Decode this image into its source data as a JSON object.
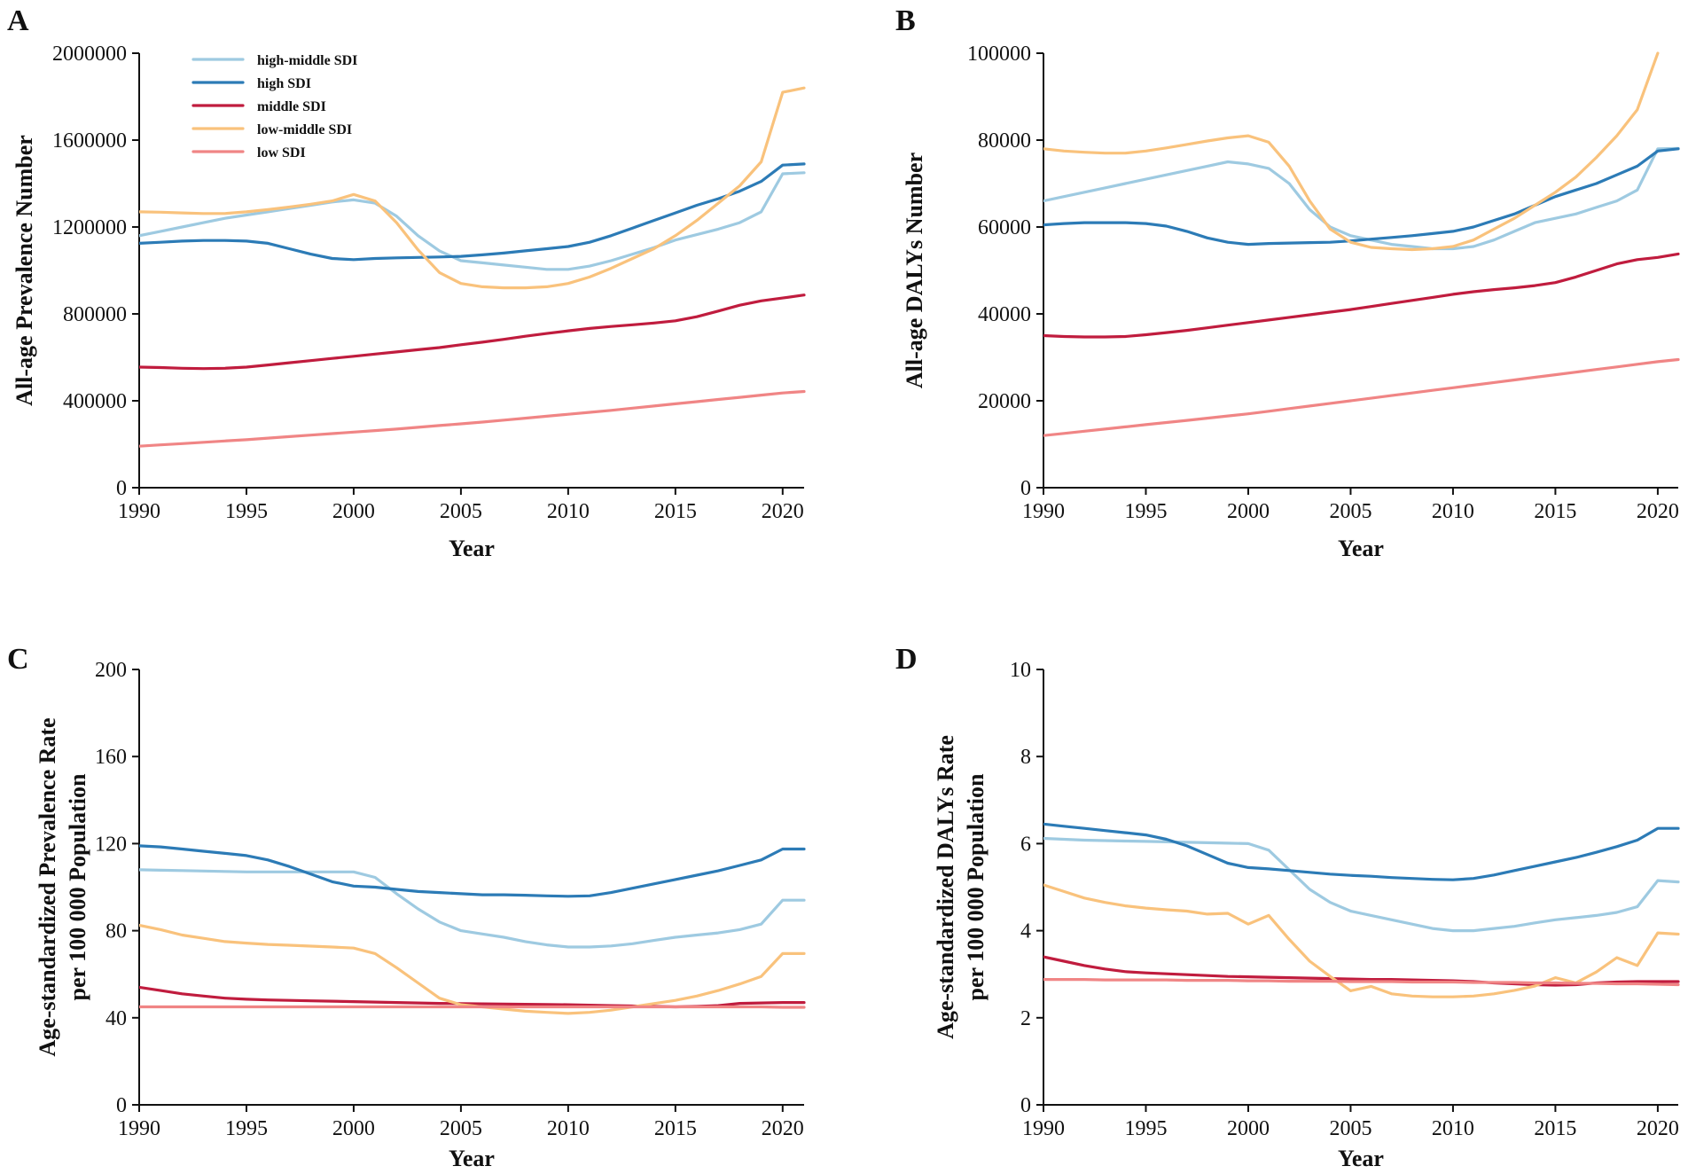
{
  "colors": {
    "high-middle SDI": "#9ecae1",
    "high SDI": "#2c7bb6",
    "middle SDI": "#c01c3e",
    "low-middle SDI": "#f9c27c",
    "low SDI": "#f08585"
  },
  "chart_data": [
    {
      "id": "A",
      "type": "line",
      "panel_label": "A",
      "title": "",
      "xlabel": "Year",
      "ylabel": "All-age Prevalence Number",
      "xlim": [
        1990,
        2021
      ],
      "ylim": [
        0,
        2000000
      ],
      "xticks": [
        1990,
        1995,
        2000,
        2005,
        2010,
        2015,
        2020
      ],
      "yticks": [
        0,
        400000,
        800000,
        1200000,
        1600000,
        2000000
      ],
      "legend": {
        "position": "top-left",
        "entries": [
          "high-middle SDI",
          "high SDI",
          "middle SDI",
          "low-middle SDI",
          "low SDI"
        ]
      },
      "x": [
        1990,
        1991,
        1992,
        1993,
        1994,
        1995,
        1996,
        1997,
        1998,
        1999,
        2000,
        2001,
        2002,
        2003,
        2004,
        2005,
        2006,
        2007,
        2008,
        2009,
        2010,
        2011,
        2012,
        2013,
        2014,
        2015,
        2016,
        2017,
        2018,
        2019,
        2020,
        2021
      ],
      "series": [
        {
          "name": "high-middle SDI",
          "values": [
            1160000,
            1180000,
            1200000,
            1220000,
            1240000,
            1255000,
            1270000,
            1285000,
            1300000,
            1315000,
            1325000,
            1310000,
            1250000,
            1160000,
            1090000,
            1045000,
            1035000,
            1025000,
            1015000,
            1005000,
            1005000,
            1020000,
            1045000,
            1075000,
            1105000,
            1140000,
            1165000,
            1190000,
            1220000,
            1270000,
            1445000,
            1450000
          ]
        },
        {
          "name": "high SDI",
          "values": [
            1125000,
            1130000,
            1135000,
            1138000,
            1138000,
            1135000,
            1125000,
            1100000,
            1075000,
            1055000,
            1050000,
            1055000,
            1058000,
            1060000,
            1062000,
            1065000,
            1072000,
            1080000,
            1090000,
            1100000,
            1110000,
            1130000,
            1160000,
            1195000,
            1230000,
            1265000,
            1300000,
            1330000,
            1365000,
            1410000,
            1485000,
            1490000
          ]
        },
        {
          "name": "middle SDI",
          "values": [
            555000,
            553000,
            550000,
            548000,
            550000,
            555000,
            565000,
            575000,
            585000,
            595000,
            605000,
            615000,
            625000,
            635000,
            645000,
            658000,
            670000,
            683000,
            697000,
            710000,
            722000,
            733000,
            742000,
            750000,
            758000,
            768000,
            787000,
            813000,
            840000,
            860000,
            873000,
            887000
          ]
        },
        {
          "name": "low-middle SDI",
          "values": [
            1270000,
            1268000,
            1265000,
            1262000,
            1262000,
            1270000,
            1280000,
            1292000,
            1305000,
            1320000,
            1350000,
            1320000,
            1220000,
            1095000,
            990000,
            940000,
            925000,
            920000,
            920000,
            925000,
            940000,
            970000,
            1010000,
            1055000,
            1100000,
            1160000,
            1230000,
            1310000,
            1390000,
            1500000,
            1820000,
            1840000
          ]
        },
        {
          "name": "low SDI",
          "values": [
            191000,
            197000,
            203000,
            209000,
            215000,
            221000,
            228000,
            235000,
            242000,
            249000,
            256000,
            263000,
            270000,
            278000,
            286000,
            294000,
            302000,
            311000,
            320000,
            329000,
            338000,
            347000,
            356000,
            366000,
            376000,
            386000,
            396000,
            406000,
            416000,
            426000,
            436000,
            443000
          ]
        }
      ]
    },
    {
      "id": "B",
      "type": "line",
      "panel_label": "B",
      "title": "",
      "xlabel": "Year",
      "ylabel": "All-age DALYs Number",
      "xlim": [
        1990,
        2021
      ],
      "ylim": [
        0,
        100000
      ],
      "xticks": [
        1990,
        1995,
        2000,
        2005,
        2010,
        2015,
        2020
      ],
      "yticks": [
        0,
        20000,
        40000,
        60000,
        80000,
        100000
      ],
      "legend": null,
      "x": [
        1990,
        1991,
        1992,
        1993,
        1994,
        1995,
        1996,
        1997,
        1998,
        1999,
        2000,
        2001,
        2002,
        2003,
        2004,
        2005,
        2006,
        2007,
        2008,
        2009,
        2010,
        2011,
        2012,
        2013,
        2014,
        2015,
        2016,
        2017,
        2018,
        2019,
        2020,
        2021
      ],
      "series": [
        {
          "name": "high-middle SDI",
          "values": [
            66000,
            67000,
            68000,
            69000,
            70000,
            71000,
            72000,
            73000,
            74000,
            75000,
            74500,
            73500,
            70000,
            64000,
            60000,
            58000,
            57000,
            56000,
            55500,
            55000,
            55000,
            55500,
            57000,
            59000,
            61000,
            62000,
            63000,
            64500,
            66000,
            68500,
            78000,
            78100
          ]
        },
        {
          "name": "high SDI",
          "values": [
            60500,
            60800,
            61000,
            61000,
            61000,
            60800,
            60200,
            59000,
            57500,
            56500,
            56000,
            56200,
            56300,
            56400,
            56500,
            56800,
            57200,
            57600,
            58000,
            58500,
            59000,
            60000,
            61500,
            63000,
            65000,
            67000,
            68500,
            70000,
            72000,
            74000,
            77500,
            78000
          ]
        },
        {
          "name": "middle SDI",
          "values": [
            35000,
            34800,
            34700,
            34700,
            34800,
            35200,
            35700,
            36200,
            36800,
            37400,
            38000,
            38600,
            39200,
            39800,
            40400,
            41000,
            41700,
            42400,
            43100,
            43800,
            44500,
            45100,
            45600,
            46000,
            46500,
            47200,
            48500,
            50000,
            51500,
            52500,
            53000,
            53800
          ]
        },
        {
          "name": "low-middle SDI",
          "values": [
            78000,
            77500,
            77200,
            77000,
            77000,
            77500,
            78200,
            79000,
            79800,
            80500,
            81000,
            79500,
            74000,
            66000,
            59500,
            56500,
            55300,
            55000,
            54800,
            55000,
            55500,
            57000,
            59500,
            62000,
            65000,
            68000,
            71500,
            76000,
            81000,
            87000,
            100000,
            null
          ]
        },
        {
          "name": "low SDI",
          "values": [
            12000,
            12500,
            13000,
            13500,
            14000,
            14500,
            15000,
            15500,
            16000,
            16500,
            17000,
            17600,
            18200,
            18800,
            19400,
            20000,
            20600,
            21200,
            21800,
            22400,
            23000,
            23600,
            24200,
            24800,
            25400,
            26000,
            26600,
            27200,
            27800,
            28400,
            29000,
            29500
          ]
        }
      ]
    },
    {
      "id": "C",
      "type": "line",
      "panel_label": "C",
      "title": "",
      "xlabel": "Year",
      "ylabel": "Age-standardized Prevalence Rate",
      "ylabel2": "per 100 000 Population",
      "xlim": [
        1990,
        2021
      ],
      "ylim": [
        0,
        200
      ],
      "xticks": [
        1990,
        1995,
        2000,
        2005,
        2010,
        2015,
        2020
      ],
      "yticks": [
        0,
        40,
        80,
        120,
        160,
        200
      ],
      "legend": null,
      "x": [
        1990,
        1991,
        1992,
        1993,
        1994,
        1995,
        1996,
        1997,
        1998,
        1999,
        2000,
        2001,
        2002,
        2003,
        2004,
        2005,
        2006,
        2007,
        2008,
        2009,
        2010,
        2011,
        2012,
        2013,
        2014,
        2015,
        2016,
        2017,
        2018,
        2019,
        2020,
        2021
      ],
      "series": [
        {
          "name": "high-middle SDI",
          "values": [
            108,
            107.8,
            107.6,
            107.4,
            107.2,
            107,
            107,
            107,
            107,
            107,
            107,
            104.5,
            97,
            90,
            84,
            80,
            78.5,
            77,
            75,
            73.5,
            72.5,
            72.5,
            73,
            74,
            75.5,
            77,
            78,
            79,
            80.5,
            83,
            94,
            94
          ]
        },
        {
          "name": "high SDI",
          "values": [
            119,
            118.5,
            117.5,
            116.5,
            115.5,
            114.5,
            112.5,
            109.5,
            106,
            102.5,
            100.5,
            100,
            99,
            98,
            97.5,
            97,
            96.5,
            96.5,
            96.3,
            96,
            95.8,
            96,
            97.5,
            99.5,
            101.5,
            103.5,
            105.5,
            107.5,
            110,
            112.5,
            117.5,
            117.5
          ]
        },
        {
          "name": "middle SDI",
          "values": [
            54,
            52.5,
            51,
            50,
            49,
            48.5,
            48.2,
            48,
            47.8,
            47.6,
            47.4,
            47.2,
            47,
            46.8,
            46.6,
            46.5,
            46.4,
            46.3,
            46.2,
            46.1,
            46,
            45.8,
            45.6,
            45.4,
            45.2,
            45,
            45.2,
            45.6,
            46.6,
            46.8,
            47,
            47
          ]
        },
        {
          "name": "low-middle SDI",
          "values": [
            82.5,
            80.5,
            78,
            76.5,
            75,
            74.3,
            73.7,
            73.3,
            72.9,
            72.5,
            72,
            69.5,
            63,
            56,
            49,
            46,
            45,
            44,
            43,
            42.5,
            42,
            42.5,
            43.5,
            45,
            46.5,
            48,
            50,
            52.5,
            55.5,
            59,
            69.5,
            69.5
          ]
        },
        {
          "name": "low SDI",
          "values": [
            45,
            45,
            45,
            45,
            45,
            45,
            45,
            45,
            45,
            45,
            45,
            45,
            45,
            45,
            45,
            45,
            45,
            45,
            45,
            45,
            45,
            45,
            45,
            45,
            45,
            45,
            45,
            45,
            45,
            45,
            44.8,
            44.8
          ]
        }
      ]
    },
    {
      "id": "D",
      "type": "line",
      "panel_label": "D",
      "title": "",
      "xlabel": "Year",
      "ylabel": "Age-standardized DALYs Rate",
      "ylabel2": "per 100 000 Population",
      "xlim": [
        1990,
        2021
      ],
      "ylim": [
        0,
        10
      ],
      "xticks": [
        1990,
        1995,
        2000,
        2005,
        2010,
        2015,
        2020
      ],
      "yticks": [
        0,
        2,
        4,
        6,
        8,
        10
      ],
      "legend": null,
      "x": [
        1990,
        1991,
        1992,
        1993,
        1994,
        1995,
        1996,
        1997,
        1998,
        1999,
        2000,
        2001,
        2002,
        2003,
        2004,
        2005,
        2006,
        2007,
        2008,
        2009,
        2010,
        2011,
        2012,
        2013,
        2014,
        2015,
        2016,
        2017,
        2018,
        2019,
        2020,
        2021
      ],
      "series": [
        {
          "name": "high-middle SDI",
          "values": [
            6.12,
            6.1,
            6.08,
            6.07,
            6.06,
            6.05,
            6.04,
            6.03,
            6.02,
            6.01,
            6,
            5.85,
            5.4,
            4.95,
            4.65,
            4.45,
            4.35,
            4.25,
            4.15,
            4.05,
            4,
            4,
            4.05,
            4.1,
            4.18,
            4.25,
            4.3,
            4.35,
            4.42,
            4.55,
            5.15,
            5.12
          ]
        },
        {
          "name": "high SDI",
          "values": [
            6.45,
            6.4,
            6.35,
            6.3,
            6.25,
            6.2,
            6.1,
            5.95,
            5.75,
            5.55,
            5.45,
            5.42,
            5.38,
            5.34,
            5.3,
            5.27,
            5.25,
            5.22,
            5.2,
            5.18,
            5.17,
            5.2,
            5.28,
            5.38,
            5.48,
            5.58,
            5.68,
            5.8,
            5.93,
            6.08,
            6.35,
            6.35
          ]
        },
        {
          "name": "middle SDI",
          "values": [
            3.4,
            3.3,
            3.2,
            3.12,
            3.06,
            3.03,
            3.01,
            2.99,
            2.97,
            2.95,
            2.94,
            2.93,
            2.92,
            2.91,
            2.9,
            2.89,
            2.88,
            2.88,
            2.87,
            2.86,
            2.85,
            2.83,
            2.8,
            2.78,
            2.76,
            2.75,
            2.76,
            2.8,
            2.82,
            2.83,
            2.83,
            2.83
          ]
        },
        {
          "name": "low-middle SDI",
          "values": [
            5.05,
            4.9,
            4.75,
            4.65,
            4.57,
            4.52,
            4.48,
            4.45,
            4.38,
            4.4,
            4.15,
            4.35,
            3.8,
            3.3,
            2.95,
            2.62,
            2.72,
            2.55,
            2.5,
            2.48,
            2.48,
            2.5,
            2.55,
            2.63,
            2.73,
            2.92,
            2.8,
            3.05,
            3.38,
            3.2,
            3.95,
            3.92
          ]
        },
        {
          "name": "low SDI",
          "values": [
            2.88,
            2.88,
            2.88,
            2.87,
            2.87,
            2.87,
            2.87,
            2.86,
            2.86,
            2.86,
            2.85,
            2.85,
            2.84,
            2.84,
            2.84,
            2.83,
            2.83,
            2.83,
            2.82,
            2.82,
            2.82,
            2.81,
            2.81,
            2.81,
            2.8,
            2.8,
            2.79,
            2.79,
            2.78,
            2.78,
            2.77,
            2.76
          ]
        }
      ]
    }
  ]
}
